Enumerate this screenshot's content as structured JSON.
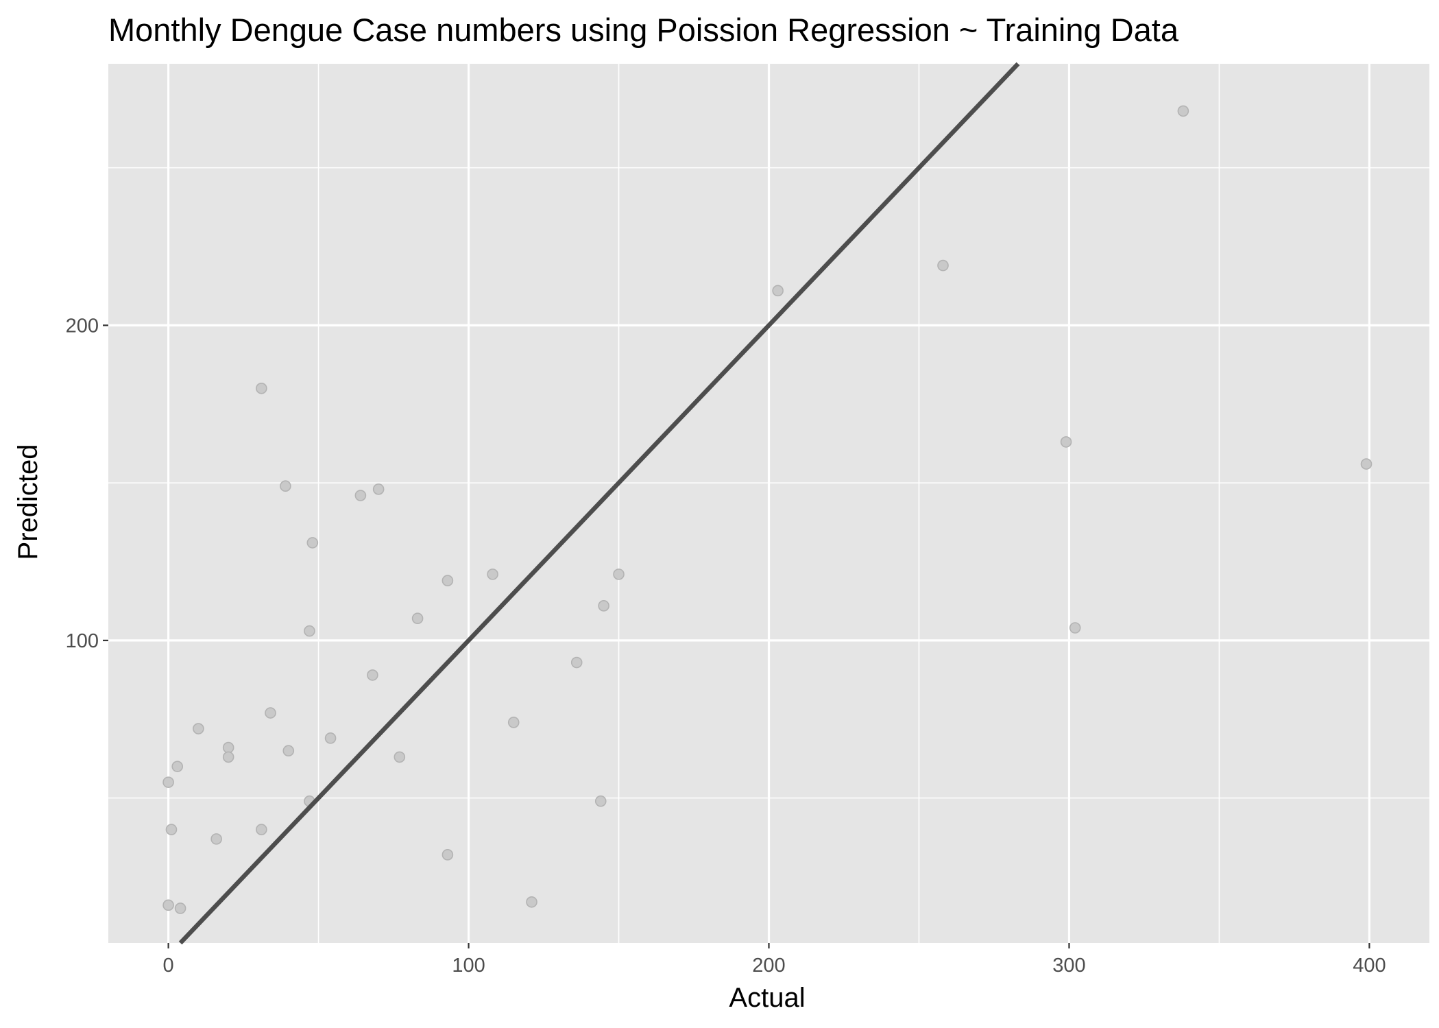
{
  "chart_data": {
    "type": "scatter",
    "title": "Monthly Dengue Case numbers using Poission Regression ~ Training Data",
    "xlabel": "Actual",
    "ylabel": "Predicted",
    "xlim": [
      -20,
      420
    ],
    "ylim": [
      4,
      283
    ],
    "x_ticks": [
      0,
      100,
      200,
      300,
      400
    ],
    "y_ticks": [
      100,
      200
    ],
    "x_minor_gridlines": [
      50,
      150,
      250,
      350
    ],
    "y_minor_gridlines": [
      50,
      150,
      250
    ],
    "grid": true,
    "legend": "none",
    "colors": {
      "panel": "#e5e5e5",
      "grid": "#ffffff",
      "point_fill": "#c9c9c9",
      "point_stroke": "#b3b3b3",
      "reference_line": "#4d4d4d"
    },
    "reference_line": {
      "slope": 1,
      "intercept": 0
    },
    "points": [
      [
        0,
        55
      ],
      [
        1,
        40
      ],
      [
        3,
        60
      ],
      [
        0,
        16
      ],
      [
        4,
        15
      ],
      [
        10,
        72
      ],
      [
        16,
        37
      ],
      [
        20,
        66
      ],
      [
        20,
        63
      ],
      [
        31,
        40
      ],
      [
        31,
        180
      ],
      [
        34,
        77
      ],
      [
        39,
        149
      ],
      [
        40,
        65
      ],
      [
        47,
        103
      ],
      [
        47,
        49
      ],
      [
        48,
        131
      ],
      [
        54,
        69
      ],
      [
        64,
        146
      ],
      [
        68,
        89
      ],
      [
        70,
        148
      ],
      [
        77,
        63
      ],
      [
        83,
        107
      ],
      [
        93,
        119
      ],
      [
        93,
        32
      ],
      [
        108,
        121
      ],
      [
        115,
        74
      ],
      [
        121,
        17
      ],
      [
        136,
        93
      ],
      [
        144,
        49
      ],
      [
        145,
        111
      ],
      [
        150,
        121
      ],
      [
        203,
        211
      ],
      [
        258,
        219
      ],
      [
        299,
        163
      ],
      [
        302,
        104
      ],
      [
        338,
        268
      ],
      [
        399,
        156
      ]
    ]
  }
}
